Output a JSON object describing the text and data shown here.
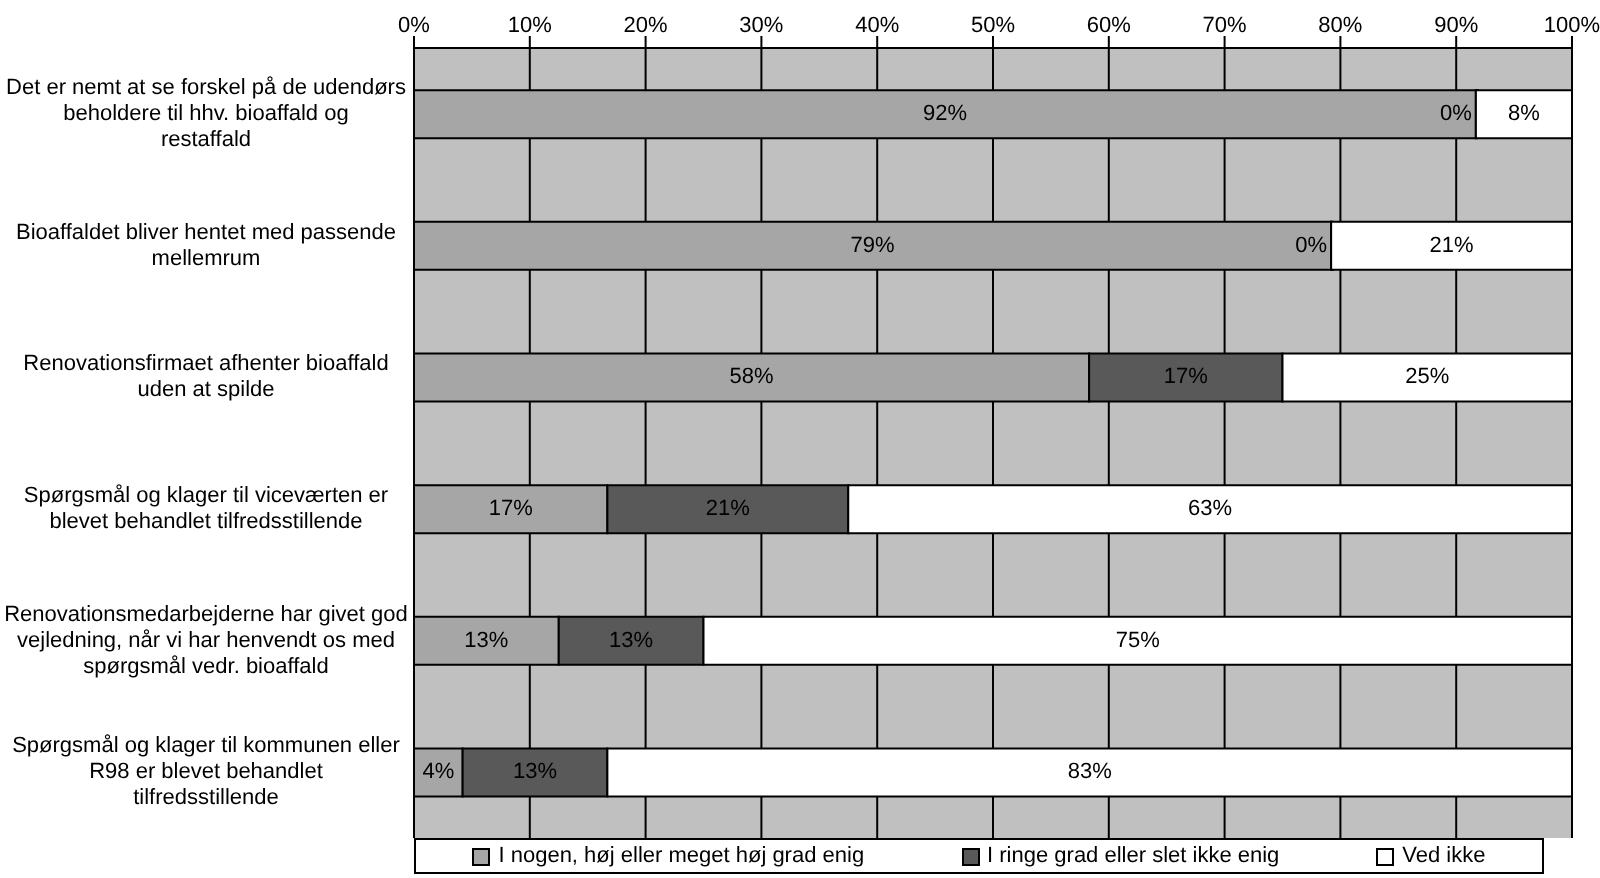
{
  "chart_data": {
    "type": "bar",
    "orientation": "horizontal",
    "stacked": true,
    "categories": [
      "Det er nemt at se forskel på de udendørs beholdere til hhv. bioaffald og restaffald",
      "Bioaffaldet bliver hentet med passende mellemrum",
      "Renovationsfirmaet afhenter bioaffald uden at spilde",
      "Spørgsmål og klager til viceværten er blevet behandlet tilfredsstillende",
      "Renovationsmedarbejderne har givet god vejledning, når vi har henvendt os med spørgsmål vedr. bioaffald",
      "Spørgsmål og klager til kommunen eller R98 er blevet behandlet tilfredsstillende"
    ],
    "series": [
      {
        "name": "I nogen, høj eller meget høj grad enig",
        "color": "#a6a6a6",
        "values": [
          91.7,
          79.2,
          58.3,
          16.7,
          12.5,
          4.2
        ],
        "value_labels": [
          "92%",
          "79%",
          "58%",
          "17%",
          "13%",
          "4%"
        ]
      },
      {
        "name": "I ringe grad eller slet ikke enig",
        "color": "#595959",
        "values": [
          0,
          0,
          16.7,
          20.8,
          12.5,
          12.5
        ],
        "value_labels": [
          "0%",
          "0%",
          "17%",
          "21%",
          "13%",
          "13%"
        ]
      },
      {
        "name": "Ved ikke",
        "color": "#ffffff",
        "values": [
          8.3,
          20.8,
          25,
          62.5,
          75,
          83.3
        ],
        "value_labels": [
          "8%",
          "21%",
          "25%",
          "63%",
          "75%",
          "83%"
        ]
      }
    ],
    "xlim": [
      0,
      100
    ],
    "xticks": [
      {
        "value": 0,
        "label": "0%"
      },
      {
        "value": 10,
        "label": "10%"
      },
      {
        "value": 20,
        "label": "20%"
      },
      {
        "value": 30,
        "label": "30%"
      },
      {
        "value": 40,
        "label": "40%"
      },
      {
        "value": 50,
        "label": "50%"
      },
      {
        "value": 60,
        "label": "60%"
      },
      {
        "value": 70,
        "label": "70%"
      },
      {
        "value": 80,
        "label": "80%"
      },
      {
        "value": 90,
        "label": "90%"
      },
      {
        "value": 100,
        "label": "100%"
      }
    ],
    "grid": "x",
    "legend": "bottom"
  }
}
